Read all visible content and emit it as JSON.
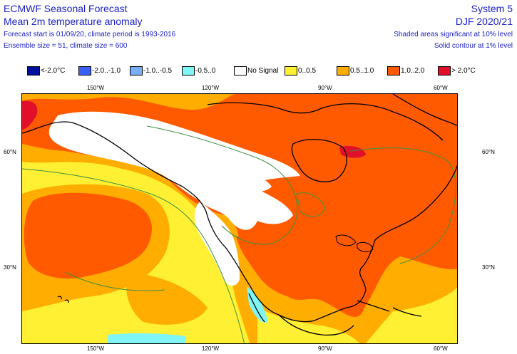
{
  "header": {
    "title": "ECMWF Seasonal Forecast",
    "subtitle": "Mean 2m temperature anomaly",
    "line3": "Forecast start is 01/09/20, climate period is 1993-2016",
    "line4": "Ensemble size = 51, climate size = 600",
    "system": "System 5",
    "season": "DJF 2020/21",
    "note1": "Shaded areas significant at 10% level",
    "note2": "Solid contour at 1% level"
  },
  "legend": [
    {
      "label": "<-2.0°C",
      "color": "#00109a"
    },
    {
      "label": "-2.0..-1.0",
      "color": "#3b5ff5"
    },
    {
      "label": "-1.0..-0.5",
      "color": "#78aef5"
    },
    {
      "label": "-0.5..0",
      "color": "#7ff5f5"
    },
    {
      "label": "No Signal",
      "color": "#ffffff"
    },
    {
      "label": "0..0.5",
      "color": "#fff033"
    },
    {
      "label": "0.5..1.0",
      "color": "#ffad00"
    },
    {
      "label": "1.0..2.0",
      "color": "#ff5a00"
    },
    {
      "label": "> 2.0°C",
      "color": "#e0102a"
    }
  ],
  "axes": {
    "top": [
      "150°W",
      "120°W",
      "90°W",
      "60°W"
    ],
    "bottom": [
      "150°W",
      "120°W",
      "90°W",
      "60°W"
    ],
    "left": [
      "60°N",
      "30°N"
    ],
    "right": [
      "60°N",
      "30°N"
    ]
  },
  "colors": {
    "text": "#1e22c8",
    "contour": "#3f8f3f",
    "coastline": "#000000"
  }
}
